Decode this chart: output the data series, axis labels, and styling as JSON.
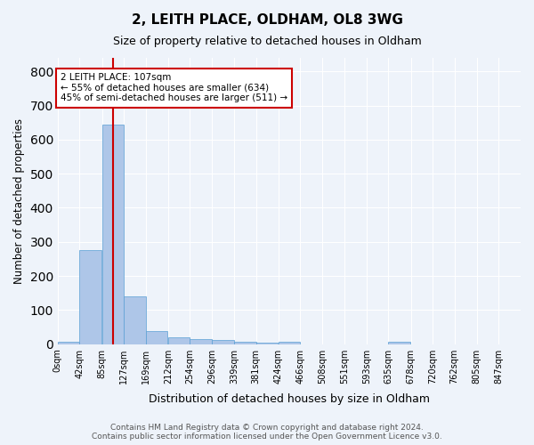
{
  "title1": "2, LEITH PLACE, OLDHAM, OL8 3WG",
  "title2": "Size of property relative to detached houses in Oldham",
  "xlabel": "Distribution of detached houses by size in Oldham",
  "ylabel": "Number of detached properties",
  "bin_edges": [
    0,
    42,
    85,
    127,
    169,
    212,
    254,
    296,
    339,
    381,
    424,
    466,
    508,
    551,
    593,
    635,
    678,
    720,
    762,
    805,
    847
  ],
  "bar_heights": [
    8,
    275,
    643,
    140,
    37,
    20,
    14,
    11,
    7,
    5,
    7,
    0,
    0,
    0,
    0,
    8,
    0,
    0,
    0,
    0
  ],
  "bar_color": "#aec6e8",
  "bar_edgecolor": "#5a9fd4",
  "bg_color": "#eef3fa",
  "grid_color": "#ffffff",
  "vline_x": 107,
  "vline_color": "#cc0000",
  "annotation_text": "2 LEITH PLACE: 107sqm\n← 55% of detached houses are smaller (634)\n45% of semi-detached houses are larger (511) →",
  "annotation_box_color": "#ffffff",
  "annotation_box_edgecolor": "#cc0000",
  "footer": "Contains HM Land Registry data © Crown copyright and database right 2024.\nContains public sector information licensed under the Open Government Licence v3.0.",
  "ylim": [
    0,
    840
  ],
  "tick_labels": [
    "0sqm",
    "42sqm",
    "85sqm",
    "127sqm",
    "169sqm",
    "212sqm",
    "254sqm",
    "296sqm",
    "339sqm",
    "381sqm",
    "424sqm",
    "466sqm",
    "508sqm",
    "551sqm",
    "593sqm",
    "635sqm",
    "678sqm",
    "720sqm",
    "762sqm",
    "805sqm",
    "847sqm"
  ]
}
